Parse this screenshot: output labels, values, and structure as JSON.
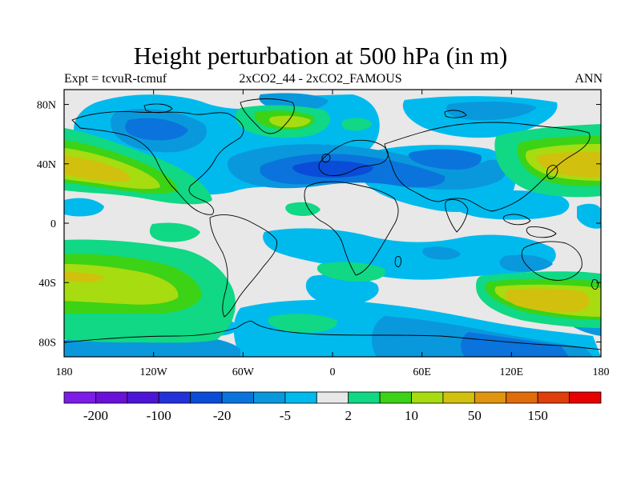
{
  "title": "Height perturbation at 500 hPa (in m)",
  "subtitle_left": "Expt = tcvuR-tcmuf",
  "subtitle_center": "2xCO2_44 - 2xCO2_FAMOUS",
  "subtitle_right": "ANN",
  "map": {
    "projection": "cylindrical-equidistant",
    "lon_range": [
      -180,
      180
    ],
    "lat_range": [
      -90,
      90
    ],
    "x_ticks": [
      {
        "lon": -180,
        "label": "180"
      },
      {
        "lon": -120,
        "label": "120W"
      },
      {
        "lon": -60,
        "label": "60W"
      },
      {
        "lon": 0,
        "label": "0"
      },
      {
        "lon": 60,
        "label": "60E"
      },
      {
        "lon": 120,
        "label": "120E"
      },
      {
        "lon": 180,
        "label": "180"
      }
    ],
    "y_ticks": [
      {
        "lat": 80,
        "label": "80N"
      },
      {
        "lat": 40,
        "label": "40N"
      },
      {
        "lat": 0,
        "label": "0"
      },
      {
        "lat": -40,
        "label": "40S"
      },
      {
        "lat": -80,
        "label": "80S"
      }
    ]
  },
  "colorbar": {
    "colors": [
      "#7c1ce6",
      "#6a10d8",
      "#4c14d6",
      "#2232d8",
      "#0a4cd8",
      "#0a74dc",
      "#0a98dc",
      "#00baee",
      "#e8e8e8",
      "#10d884",
      "#3cd216",
      "#a6dc10",
      "#d2c00e",
      "#e09410",
      "#e06c0a",
      "#e03e0a",
      "#e60000"
    ],
    "tick_labels": [
      {
        "after_box": 1,
        "label": "-200"
      },
      {
        "after_box": 3,
        "label": "-100"
      },
      {
        "after_box": 5,
        "label": "-20"
      },
      {
        "after_box": 7,
        "label": "-5"
      },
      {
        "after_box": 9,
        "label": "2"
      },
      {
        "after_box": 11,
        "label": "10"
      },
      {
        "after_box": 13,
        "label": "50"
      },
      {
        "after_box": 15,
        "label": "150"
      }
    ]
  }
}
